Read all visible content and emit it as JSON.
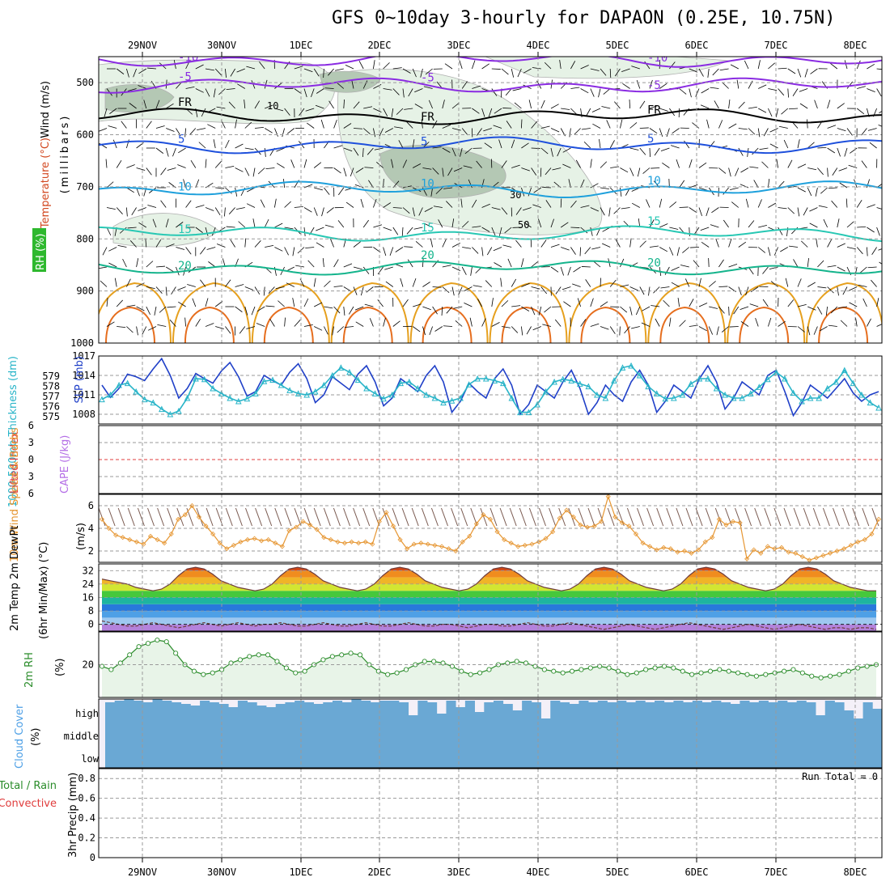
{
  "title": "GFS 0~10day 3-hourly for DAPAON (0.25E, 10.75N)",
  "chart_data": [
    {
      "type": "contour",
      "panel": "upper_air",
      "ylabels": {
        "wind": "Wind (m/s)",
        "temperature": "Temperature (°C)",
        "rh": "RH (%)",
        "axis": "(millibars)"
      },
      "yticks": [
        500,
        600,
        700,
        800,
        900,
        1000
      ],
      "ylim": [
        1000,
        450
      ],
      "temperature_isotherms": [
        {
          "label": "-10",
          "pressure": 455,
          "color": "#8a2be2"
        },
        {
          "label": "-5",
          "pressure": 505,
          "color": "#8a2be2"
        },
        {
          "label": "FR",
          "pressure": 565,
          "color": "#000000"
        },
        {
          "label": "5",
          "pressure": 620,
          "color": "#1e50dc"
        },
        {
          "label": "10",
          "pressure": 705,
          "color": "#1ea0dc"
        },
        {
          "label": "15",
          "pressure": 790,
          "color": "#28c8b4"
        },
        {
          "label": "20",
          "pressure": 855,
          "color": "#14b48c"
        }
      ],
      "rh_contour_labels": [
        "10",
        "30",
        "50"
      ],
      "colors": {
        "rh_light": "#e6f2e6",
        "rh_dark": "#b4c8b4",
        "wind_high": "#e6a01e",
        "wind_higher": "#e66e1e"
      }
    },
    {
      "type": "line",
      "panel": "slp_thickness",
      "ylabels": {
        "thickness": "1000-500mb Thickness (dm)",
        "slp": "SLP (mb)"
      },
      "yticks_thickness": [
        575,
        576,
        577,
        578,
        579
      ],
      "yticks_slp": [
        1008,
        1011,
        1014,
        1017
      ],
      "ylim_slp": [
        1006.5,
        1017
      ],
      "series": [
        {
          "name": "SLP",
          "color": "#2040c8",
          "values": [
            1012.5,
            1010.6,
            1012.0,
            1014.2,
            1013.8,
            1013.2,
            1015.0,
            1016.6,
            1014.0,
            1010.5,
            1012.0,
            1014.3,
            1013.5,
            1012.8,
            1014.7,
            1016.0,
            1013.8,
            1010.8,
            1011.5,
            1014.0,
            1013.2,
            1012.5,
            1014.5,
            1015.8,
            1013.5,
            1009.8,
            1011.0,
            1013.8,
            1012.8,
            1011.8,
            1014.2,
            1015.5,
            1013.0,
            1009.3,
            1010.5,
            1013.5,
            1012.5,
            1011.5,
            1014.0,
            1015.5,
            1013.0,
            1008.3,
            1010.0,
            1012.8,
            1011.5,
            1010.5,
            1013.5,
            1015.0,
            1012.5,
            1008.0,
            1009.5,
            1012.5,
            1011.5,
            1010.5,
            1013.0,
            1014.8,
            1012.0,
            1008.0,
            1009.8,
            1012.5,
            1011.0,
            1010.0,
            1013.0,
            1014.8,
            1012.5,
            1008.3,
            1010.0,
            1012.5,
            1011.5,
            1010.5,
            1013.5,
            1015.5,
            1013.0,
            1008.8,
            1010.5,
            1013.0,
            1012.0,
            1011.0,
            1014.0,
            1014.8,
            1011.5,
            1007.8,
            1009.8,
            1012.5,
            1011.5,
            1010.5,
            1012.0,
            1013.5,
            1011.3,
            1010.0,
            1011.0,
            1011.5
          ]
        },
        {
          "name": "Thickness",
          "color": "#28b4c8",
          "values": [
            1010.3,
            1011.0,
            1012.5,
            1012.8,
            1011.5,
            1010.3,
            1009.8,
            1008.8,
            1008.0,
            1008.5,
            1010.5,
            1013.5,
            1013.4,
            1012.0,
            1011.2,
            1010.5,
            1010.0,
            1010.4,
            1011.2,
            1013.1,
            1013.3,
            1012.5,
            1011.7,
            1011.2,
            1011.0,
            1011.5,
            1012.5,
            1014.0,
            1015.2,
            1014.5,
            1013.3,
            1012.0,
            1011.2,
            1010.4,
            1011.0,
            1012.8,
            1013.0,
            1012.0,
            1011.0,
            1010.5,
            1009.8,
            1010.1,
            1010.5,
            1012.6,
            1013.5,
            1013.5,
            1013.2,
            1012.8,
            1010.5,
            1008.3,
            1008.3,
            1009.5,
            1011.5,
            1013.0,
            1013.4,
            1013.2,
            1012.7,
            1012.3,
            1011.0,
            1010.5,
            1013.2,
            1015.2,
            1015.5,
            1014.0,
            1012.3,
            1011.2,
            1010.4,
            1010.5,
            1011.0,
            1012.7,
            1013.5,
            1013.5,
            1012.0,
            1011.0,
            1010.5,
            1010.5,
            1011.2,
            1012.2,
            1013.4,
            1014.5,
            1013.5,
            1011.3,
            1010.0,
            1010.5,
            1010.5,
            1012.0,
            1013.0,
            1014.8,
            1012.8,
            1011.0,
            1009.8,
            1009.0
          ]
        }
      ]
    },
    {
      "type": "line",
      "panel": "cape_li",
      "ylabels": {
        "li": "Lifted Index",
        "cape": "CAPE (J/kg)"
      },
      "yticks": [
        -6,
        -3,
        0,
        3,
        6
      ],
      "ylim": [
        -6,
        6
      ],
      "series": []
    },
    {
      "type": "line",
      "panel": "wind10m",
      "ylabels": {
        "main": "10m Wind Speed & Barbs",
        "unit": "(m/s)"
      },
      "yticks": [
        2,
        4,
        6
      ],
      "ylim": [
        1,
        7
      ],
      "series": [
        {
          "name": "10m Wind Speed",
          "color": "#e69632",
          "values": [
            4.8,
            4.0,
            3.4,
            3.2,
            3.0,
            2.8,
            2.6,
            3.3,
            3.0,
            2.7,
            3.5,
            4.8,
            5.2,
            6.0,
            5.0,
            4.2,
            3.5,
            2.7,
            2.2,
            2.5,
            2.8,
            3.0,
            3.1,
            2.9,
            3.0,
            2.7,
            2.4,
            3.8,
            4.1,
            4.6,
            4.3,
            3.9,
            3.2,
            3.0,
            2.8,
            2.7,
            2.8,
            2.7,
            2.8,
            2.6,
            4.6,
            5.4,
            4.2,
            3.0,
            2.2,
            2.6,
            2.7,
            2.6,
            2.5,
            2.4,
            2.2,
            2.0,
            2.8,
            3.3,
            4.4,
            5.2,
            4.8,
            3.7,
            3.0,
            2.7,
            2.4,
            2.5,
            2.6,
            2.8,
            3.1,
            3.7,
            4.9,
            5.6,
            5.0,
            4.3,
            4.1,
            4.2,
            4.6,
            6.8,
            5.0,
            4.5,
            4.2,
            3.5,
            2.7,
            2.4,
            2.1,
            2.3,
            2.2,
            1.9,
            2.0,
            1.8,
            2.1,
            2.8,
            3.2,
            4.8,
            4.3,
            4.6,
            4.5,
            1.3,
            2.1,
            1.8,
            2.4,
            2.2,
            2.3,
            1.9,
            1.8,
            1.5,
            1.2,
            1.4,
            1.6,
            1.8,
            2.0,
            2.2,
            2.5,
            2.8,
            3.0,
            3.5,
            4.8
          ]
        }
      ]
    },
    {
      "type": "area",
      "panel": "temp2m",
      "ylabels": {
        "main": "2m Temp 2m DewPt",
        "sub": "(6hr Min/Max) (°C)"
      },
      "yticks": [
        0,
        8,
        16,
        24,
        32
      ],
      "ylim": [
        -4,
        36
      ],
      "series": [
        {
          "name": "2m Temp",
          "color": "#d2461e",
          "values": [
            27,
            26,
            25,
            24,
            22,
            21,
            20,
            21,
            24,
            29,
            33,
            34,
            33,
            30,
            26,
            24,
            22,
            21,
            20,
            21,
            24,
            29,
            33,
            34,
            33,
            30,
            26,
            24,
            22,
            21,
            20,
            21,
            24,
            29,
            33,
            34,
            33,
            30,
            26,
            24,
            22,
            21,
            20,
            21,
            24,
            29,
            33,
            34,
            33,
            30,
            26,
            24,
            22,
            21,
            20,
            21,
            24,
            29,
            33,
            34,
            33,
            30,
            26,
            24,
            22,
            21,
            20,
            21,
            24,
            29,
            33,
            34,
            33,
            30,
            26,
            24,
            22,
            21,
            20,
            21,
            24,
            29,
            33,
            34,
            33,
            30,
            26,
            24,
            22,
            21,
            20,
            20
          ]
        },
        {
          "name": "2m DewPt",
          "color": "#6e3c3c",
          "values": [
            2,
            1,
            0,
            -1,
            -1,
            0,
            1,
            0,
            -1,
            -2,
            -1,
            0,
            1,
            0,
            -1,
            0,
            1,
            0,
            -1,
            0,
            0,
            1,
            0,
            -1,
            -1,
            0,
            1,
            0,
            -1,
            -1,
            0,
            1,
            0,
            -1,
            -1,
            0,
            1,
            0,
            -1,
            -1,
            0,
            0,
            -1,
            -2,
            -1,
            0,
            0,
            -1,
            -1,
            0,
            1,
            0,
            -1,
            -1,
            0,
            1,
            0,
            -1,
            -2,
            -3,
            -2,
            -1,
            0,
            -1,
            -2,
            -3,
            -2,
            -1,
            0,
            1,
            0,
            -1,
            -2,
            -3,
            -2,
            -1,
            0,
            -1,
            -2,
            -3,
            -2,
            -1,
            0,
            -1,
            -2,
            -3,
            -2,
            -2,
            -3,
            -2,
            -2,
            -3
          ]
        }
      ]
    },
    {
      "type": "line",
      "panel": "rh2m",
      "ylabels": {
        "main": "2m RH",
        "unit": "(%)"
      },
      "yticks": [
        20
      ],
      "ylim": [
        0,
        40
      ],
      "series": [
        {
          "name": "2m RH",
          "color": "#2a8c2a",
          "values": [
            19,
            17,
            21,
            26,
            31,
            33,
            35,
            34,
            27,
            20,
            16,
            14,
            15,
            17,
            21,
            23,
            25,
            26,
            26,
            22,
            18,
            15,
            16,
            20,
            23,
            25,
            26,
            27,
            26,
            20,
            16,
            14,
            15,
            17,
            20,
            22,
            22,
            21,
            19,
            16,
            14,
            15,
            17,
            20,
            21,
            22,
            21,
            19,
            17,
            16,
            15,
            16,
            17,
            18,
            19,
            18,
            16,
            14,
            15,
            17,
            18,
            19,
            18,
            16,
            14,
            15,
            16,
            17,
            16,
            15,
            14,
            13,
            14,
            15,
            16,
            17,
            15,
            13,
            12,
            13,
            14,
            16,
            18,
            19,
            20
          ]
        }
      ]
    },
    {
      "type": "bar",
      "panel": "cloud",
      "ylabels": {
        "main": "Cloud Cover",
        "unit": "(%)"
      },
      "yticks": [
        "high",
        "middle",
        "low"
      ],
      "colors": {
        "cloud": "#6aa8d4",
        "clear": "#f4f0f8"
      }
    },
    {
      "type": "bar",
      "panel": "precip",
      "ylabels": {
        "main": "3hr Precip (mm)",
        "legend_total": "Total / Rain",
        "legend_convective": "Convective"
      },
      "yticks": [
        0,
        0.2,
        0.4,
        0.6,
        0.8
      ],
      "ylim": [
        0,
        0.9
      ],
      "run_total_label": "Run Total = 0",
      "series": []
    }
  ],
  "x_axis": {
    "dates": [
      "29NOV",
      "30NOV",
      "1DEC",
      "2DEC",
      "3DEC",
      "4DEC",
      "5DEC",
      "6DEC",
      "7DEC",
      "8DEC"
    ]
  }
}
